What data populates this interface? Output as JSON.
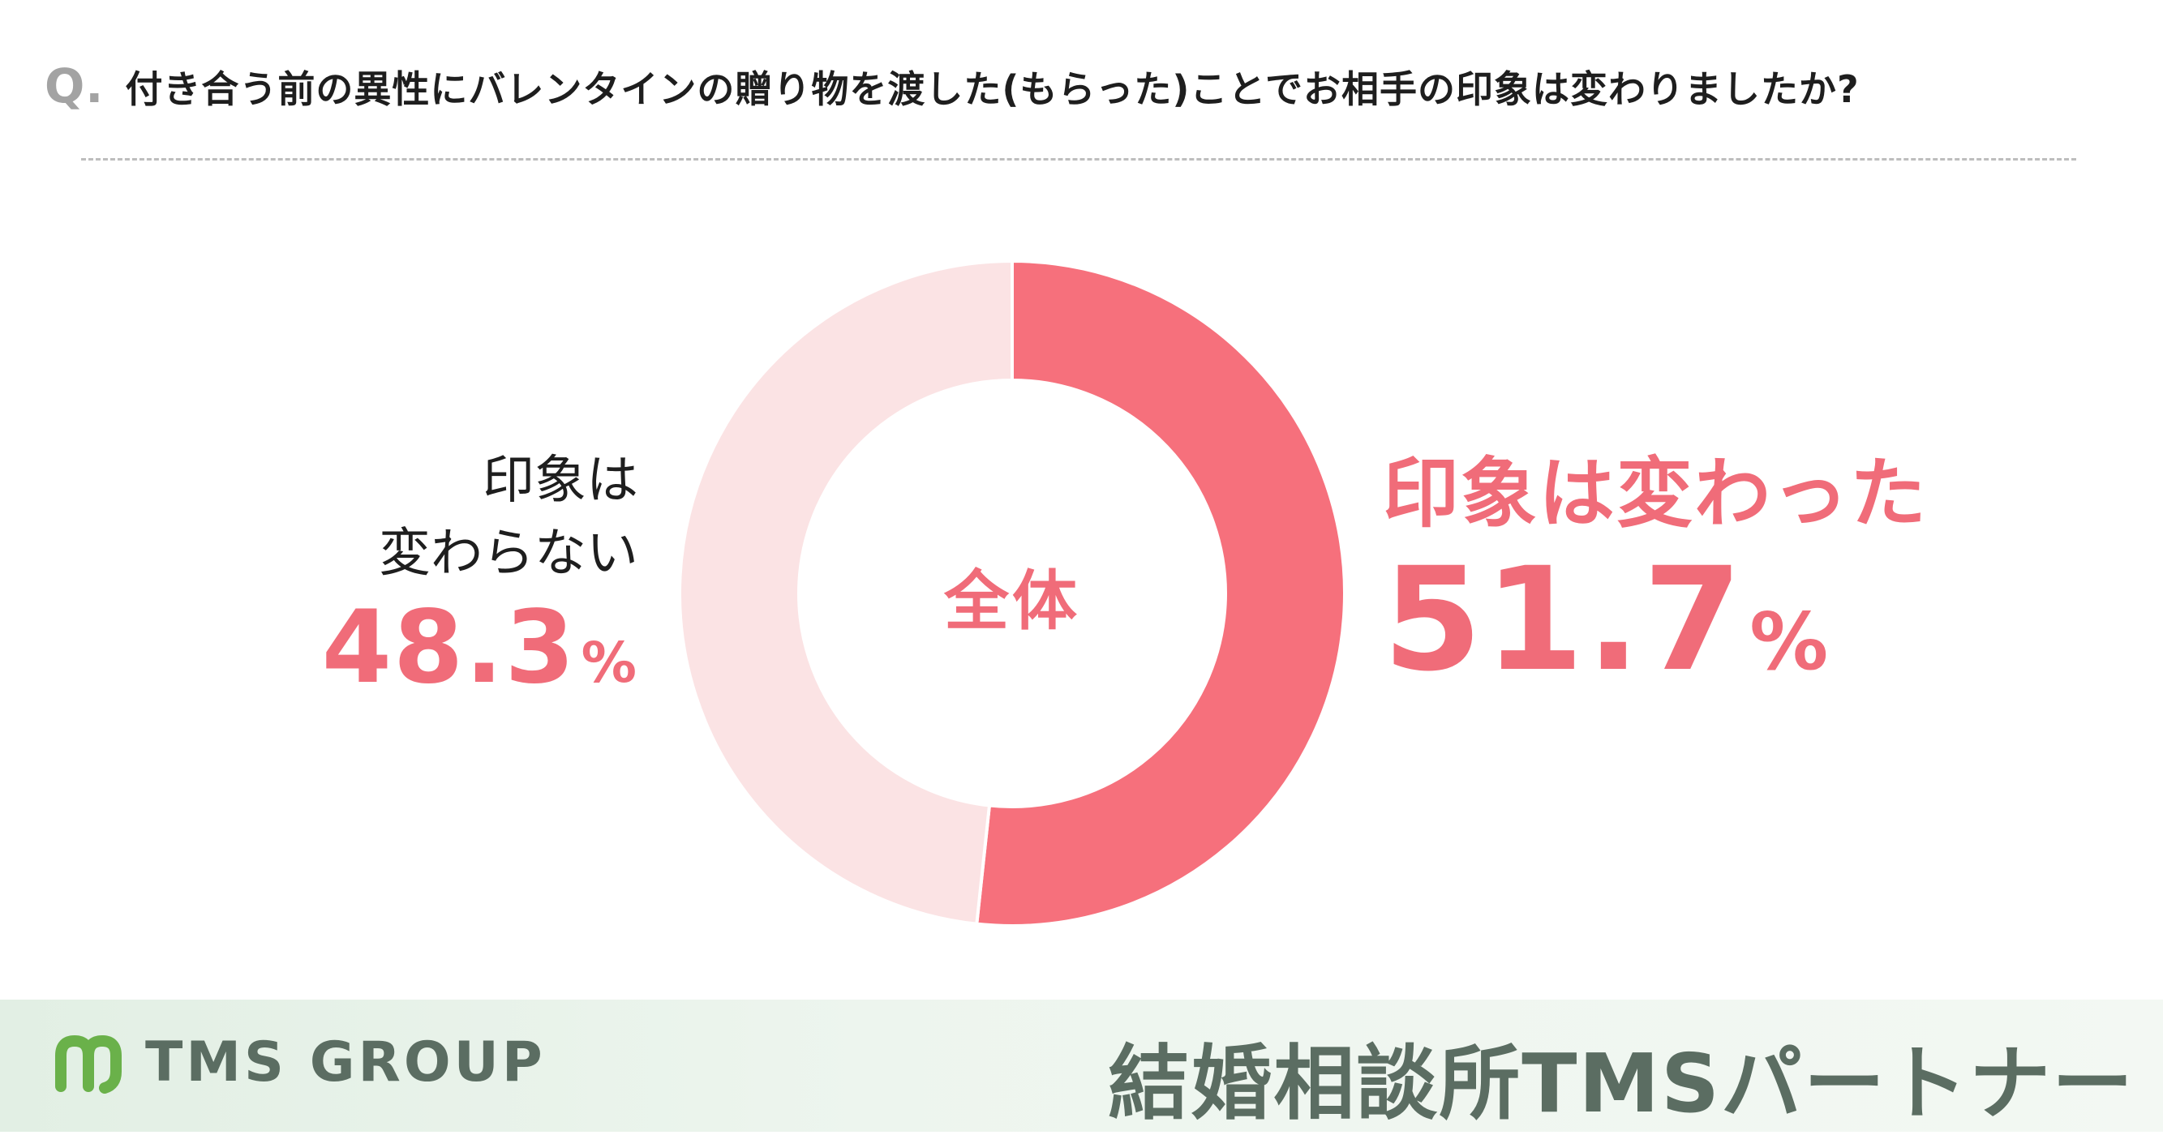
{
  "question": {
    "prefix": "Q.",
    "text": "付き合う前の異性にバレンタインの贈り物を渡した(もらった)ことでお相手の印象は変わりましたか?"
  },
  "chart_data": {
    "type": "pie",
    "style": "donut",
    "center_label": "全体",
    "slices": [
      {
        "label": "印象は変わった",
        "value": 51.7,
        "display": "51.7",
        "unit": "%",
        "color": "#f6707c"
      },
      {
        "label": "印象は変わらない",
        "value": 48.3,
        "display": "48.3",
        "unit": "%",
        "color": "#fbe3e4",
        "label_lines": [
          "印象は",
          "変わらない"
        ]
      }
    ]
  },
  "footer": {
    "logo_text": "TMS GROUP",
    "partner_text": "結婚相談所TMSパートナー",
    "accent_color": "#6ab14a",
    "text_color": "#5b6d62"
  }
}
